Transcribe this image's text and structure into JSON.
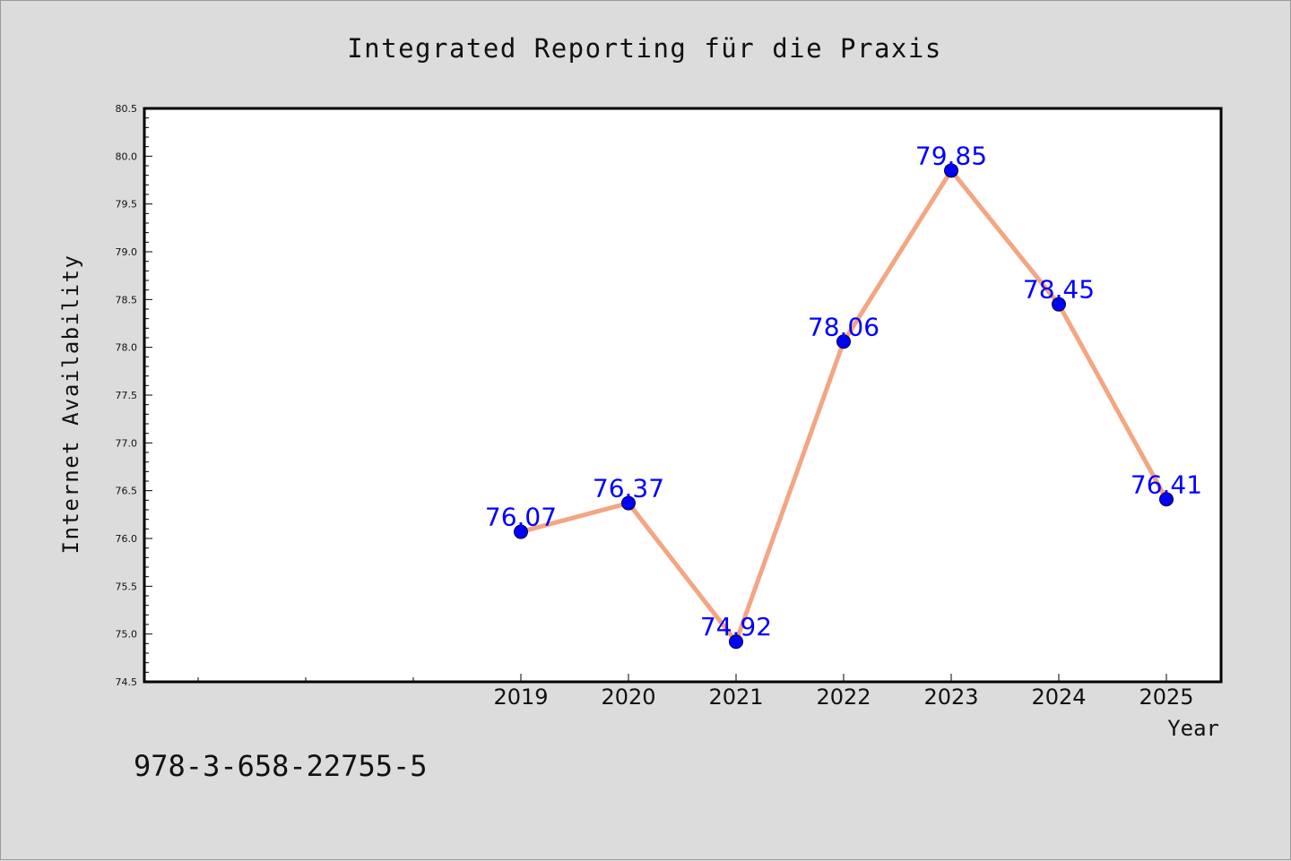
{
  "chart_data": {
    "type": "line",
    "title": "Integrated Reporting für die Praxis",
    "xlabel": "Year",
    "ylabel": "Internet Availability",
    "footer": "978-3-658-22755-5",
    "x": [
      "2019",
      "2020",
      "2021",
      "2022",
      "2023",
      "2024",
      "2025"
    ],
    "series": [
      {
        "values": [
          76.07,
          76.37,
          74.92,
          78.06,
          79.85,
          78.45,
          76.41
        ],
        "labels": [
          "76.07",
          "76.37",
          "74.92",
          "78.06",
          "79.85",
          "78.45",
          "76.41"
        ]
      }
    ],
    "ylim": [
      74.5,
      80.5
    ],
    "yticks": [
      "74.5",
      "75.0",
      "75.5",
      "76.0",
      "76.5",
      "77.0",
      "77.5",
      "78.0",
      "78.5",
      "79.0",
      "79.5",
      "80.0",
      "80.5"
    ],
    "grid": false,
    "colors": {
      "line": "#f4a582",
      "marker": "#0000ff",
      "label": "#0000ff",
      "background": "#dcdcdc",
      "plot": "#ffffff"
    }
  }
}
